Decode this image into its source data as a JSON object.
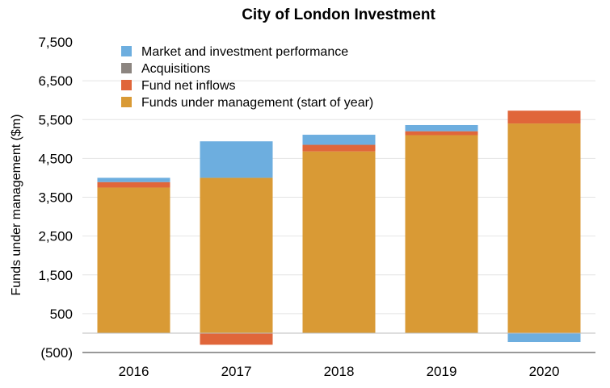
{
  "chart_data": {
    "type": "bar",
    "stacked": true,
    "title": "City of London Investment",
    "xlabel": "",
    "ylabel": "Funds under management ($m)",
    "ylim": [
      -500,
      7500
    ],
    "yticks": [
      -500,
      500,
      1500,
      2500,
      3500,
      4500,
      5500,
      6500,
      7500
    ],
    "ytick_labels": [
      "(500)",
      "500",
      "1,500",
      "2,500",
      "3,500",
      "4,500",
      "5,500",
      "6,500",
      "7,500"
    ],
    "categories": [
      "2016",
      "2017",
      "2018",
      "2019",
      "2020"
    ],
    "grid": true,
    "legend_position": "top-left",
    "series": [
      {
        "name": "Funds under management (start of year)",
        "color": "#D99A35",
        "values": [
          3750,
          4000,
          4680,
          5100,
          5400
        ]
      },
      {
        "name": "Fund net inflows",
        "color": "#E0663A",
        "values": [
          140,
          -300,
          170,
          100,
          330
        ]
      },
      {
        "name": "Acquisitions",
        "color": "#8C8580",
        "values": [
          0,
          0,
          0,
          0,
          0
        ]
      },
      {
        "name": "Market and investment performance",
        "color": "#6DAEDF",
        "values": [
          110,
          940,
          260,
          160,
          -230
        ]
      }
    ],
    "legend_order": [
      "Market and investment performance",
      "Acquisitions",
      "Fund net inflows",
      "Funds under management (start of year)"
    ]
  }
}
